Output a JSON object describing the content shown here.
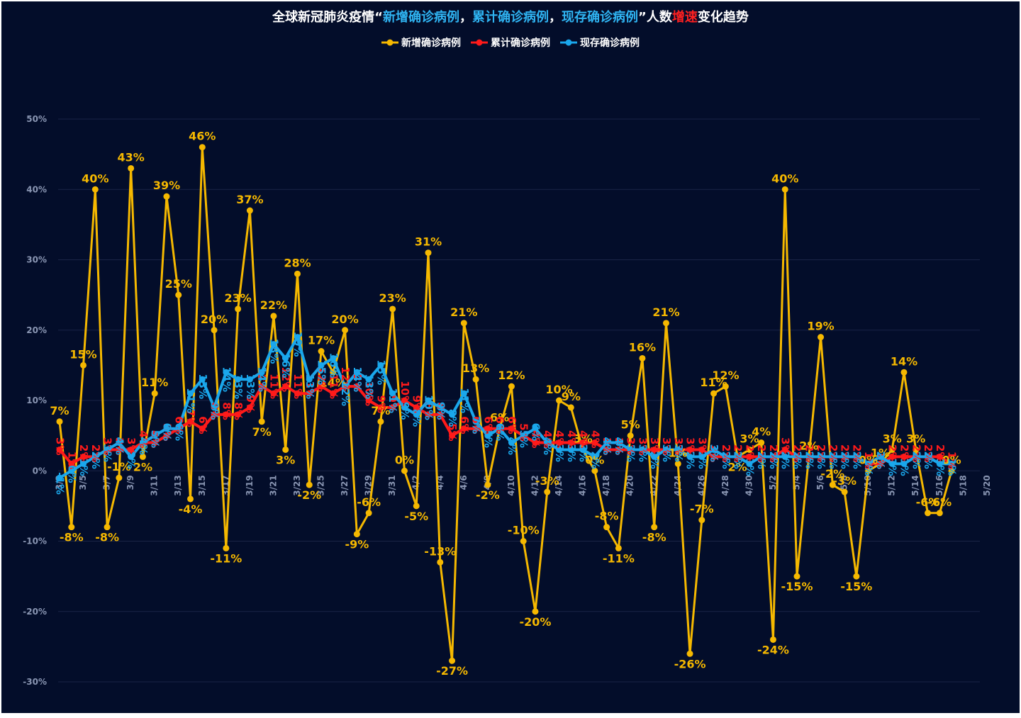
{
  "title_parts": [
    "全球新冠肺炎疫情“",
    "新增确诊病例",
    "，",
    "累计确诊病例",
    "，",
    "现存确诊病例",
    "”人数",
    "增速",
    "变化趋势"
  ],
  "chart_data": {
    "type": "line",
    "title": "全球新冠肺炎疫情“新增确诊病例，累计确诊病例，现存确诊病例”人数增速变化趋势",
    "ylim": [
      -30,
      50
    ],
    "ytick_labels": [
      "-30%",
      "-20%",
      "-10%",
      "0%",
      "10%",
      "20%",
      "30%",
      "40%",
      "50%"
    ],
    "x_tick_labels": [
      "3/3",
      "3/5",
      "3/7",
      "3/9",
      "3/11",
      "3/13",
      "3/15",
      "3/17",
      "3/19",
      "3/21",
      "3/23",
      "3/25",
      "3/27",
      "3/29",
      "3/31",
      "4/2",
      "4/4",
      "4/6",
      "4/8",
      "4/10",
      "4/12",
      "4/14",
      "4/16",
      "4/18",
      "4/20",
      "4/22",
      "4/24",
      "4/26",
      "4/28",
      "4/30",
      "5/2",
      "5/4",
      "5/6",
      "5/8",
      "5/10",
      "5/12",
      "5/14",
      "5/16",
      "5/18",
      "5/20"
    ],
    "legend_position": "top-center",
    "grid": true,
    "series": [
      {
        "name": "新增确诊病例",
        "color": "#f5b800",
        "values": [
          7,
          -8,
          15,
          40,
          -8,
          -1,
          43,
          2,
          11,
          39,
          25,
          -4,
          46,
          20,
          -11,
          23,
          37,
          7,
          22,
          3,
          28,
          -2,
          17,
          14,
          20,
          -9,
          -6,
          7,
          23,
          0,
          -5,
          31,
          -13,
          -27,
          21,
          13,
          -2,
          6,
          12,
          -10,
          -20,
          -3,
          10,
          9,
          3,
          0,
          -8,
          -11,
          5,
          16,
          -8,
          21,
          1,
          -26,
          -7,
          11,
          12,
          2,
          3,
          4,
          -24,
          40,
          -15,
          2,
          19,
          -2,
          -3,
          -15,
          0,
          1,
          3,
          14,
          3,
          -6,
          -6,
          0
        ],
        "point_labels": [
          "7%",
          "-8%",
          "15%",
          "40%",
          "-8%",
          "-1%",
          "43%",
          "2%",
          "11%",
          "39%",
          "25%",
          "-4%",
          "46%",
          "20%",
          "-11%",
          "23%",
          "37%",
          "7%",
          "22%",
          "3%",
          "28%",
          "-2%",
          "17%",
          "14%",
          "20%",
          "-9%",
          "-6%",
          "7%",
          "23%",
          "0%",
          "-5%",
          "31%",
          "-13%",
          "-27%",
          "21%",
          "13%",
          "-2%",
          "6%",
          "12%",
          "-10%",
          "-20%",
          "-3%",
          "10%",
          "9%",
          "3%",
          "0%",
          "-8%",
          "-11%",
          "5%",
          "16%",
          "-8%",
          "21%",
          "1%",
          "-26%",
          "-7%",
          "11%",
          "12%",
          "2%",
          "3%",
          "4%",
          "-24%",
          "40%",
          "-15%",
          "2%",
          "19%",
          "-2%",
          "-3%",
          "-15%",
          "0%",
          "1%",
          "3%",
          "14%",
          "3%",
          "-6%",
          "-6%",
          "0%"
        ]
      },
      {
        "name": "累计确诊病例",
        "color": "#ff1a1a",
        "values": [
          3,
          1,
          2,
          2,
          3,
          3,
          3,
          4,
          4,
          5,
          6,
          7,
          6,
          8,
          8,
          8,
          9,
          12,
          11,
          12,
          11,
          11,
          12,
          11,
          12,
          12,
          10,
          9,
          9,
          10,
          9,
          8,
          8,
          5,
          6,
          6,
          6,
          6,
          6,
          5,
          4,
          4,
          4,
          4,
          4,
          4,
          3,
          3,
          3,
          3,
          3,
          3,
          3,
          3,
          3,
          2,
          2,
          2,
          2,
          2,
          2,
          3,
          2,
          2,
          2,
          2,
          2,
          2,
          1,
          1,
          2,
          2,
          2,
          2,
          2,
          1
        ],
        "point_labels": [
          "3%",
          "1%",
          "2%",
          "2%",
          "3%",
          "3%",
          "3%",
          "4%",
          "4%",
          "5%",
          "6%",
          "7%",
          "6%",
          "8%",
          "8%",
          "8%",
          "9%",
          "12%",
          "11%",
          "12%",
          "11%",
          "11%",
          "12%",
          "11%",
          "12%",
          "12%",
          "10%",
          "9%",
          "9%",
          "10%",
          "9%",
          "8%",
          "8%",
          "5%",
          "6%",
          "6%",
          "6%",
          "6%",
          "6%",
          "5%",
          "4%",
          "4%",
          "4%",
          "4%",
          "4%",
          "4%",
          "3%",
          "3%",
          "3%",
          "3%",
          "3%",
          "3%",
          "3%",
          "3%",
          "3%",
          "2%",
          "2%",
          "2%",
          "2%",
          "2%",
          "2%",
          "3%",
          "2%",
          "2%",
          "2%",
          "2%",
          "2%",
          "2%",
          "1%",
          "1%",
          "2%",
          "2%",
          "2%",
          "2%",
          "2%",
          "1%"
        ]
      },
      {
        "name": "现存确诊病例",
        "color": "#1aa7ec",
        "values": [
          -1,
          0,
          1,
          2,
          3,
          4,
          2,
          4,
          5,
          6,
          6,
          11,
          13,
          9,
          14,
          13,
          13,
          14,
          18,
          16,
          19,
          13,
          15,
          16,
          12,
          14,
          13,
          15,
          11,
          9,
          8,
          10,
          9,
          8,
          11,
          7,
          5,
          6,
          4,
          5,
          6,
          4,
          3,
          3,
          3,
          2,
          4,
          4,
          3,
          3,
          2,
          3,
          3,
          2,
          2,
          3,
          2,
          2,
          1,
          2,
          2,
          2,
          2,
          2,
          2,
          2,
          2,
          2,
          1,
          2,
          1,
          1,
          2,
          2,
          1,
          1
        ],
        "point_labels": [
          "-1%",
          "0%",
          "1%",
          "2%",
          "3%",
          "4%",
          "2%",
          "4%",
          "5%",
          "6%",
          "6%",
          "11%",
          "13%",
          "9%",
          "14%",
          "13%",
          "13%",
          "14%",
          "18%",
          "16%",
          "19%",
          "13%",
          "15%",
          "16%",
          "12%",
          "14%",
          "13%",
          "15%",
          "11%",
          "9%",
          "8%",
          "10%",
          "9%",
          "8%",
          "11%",
          "7%",
          "5%",
          "6%",
          "4%",
          "5%",
          "6%",
          "4%",
          "3%",
          "3%",
          "3%",
          "2%",
          "4%",
          "4%",
          "3%",
          "3%",
          "2%",
          "3%",
          "3%",
          "2%",
          "2%",
          "3%",
          "2%",
          "2%",
          "1%",
          "2%",
          "2%",
          "2%",
          "2%",
          "2%",
          "2%",
          "2%",
          "2%",
          "2%",
          "1%",
          "2%",
          "1%",
          "1%",
          "2%",
          "2%",
          "1%",
          "1%"
        ]
      }
    ]
  }
}
